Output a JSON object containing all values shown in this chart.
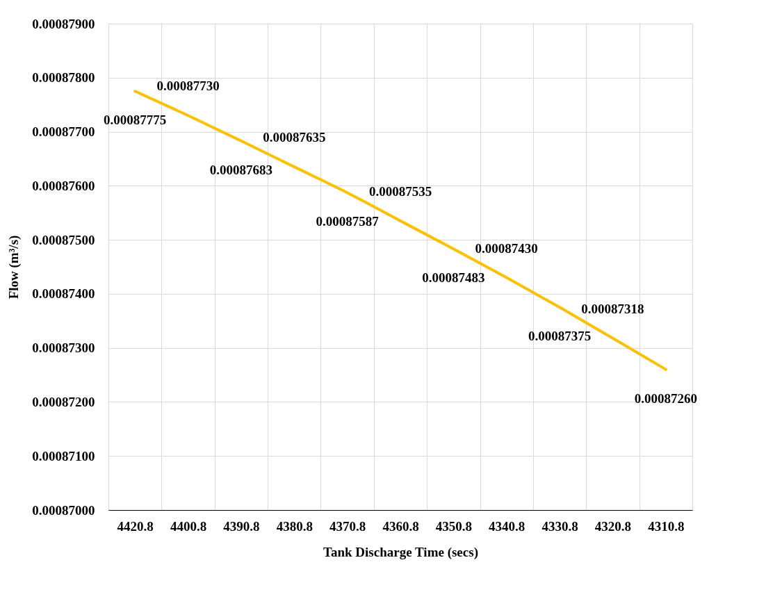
{
  "chart_data": {
    "type": "line",
    "xlabel": "Tank Discharge Time (secs)",
    "ylabel": "Flow (m³/s)",
    "categories": [
      "4420.8",
      "4400.8",
      "4390.8",
      "4380.8",
      "4370.8",
      "4360.8",
      "4350.8",
      "4340.8",
      "4330.8",
      "4320.8",
      "4310.8"
    ],
    "series": [
      {
        "color": "#ffc000",
        "values": [
          0.00087775,
          0.0008773,
          0.00087683,
          0.00087635,
          0.00087587,
          0.00087535,
          0.00087483,
          0.0008743,
          0.00087375,
          0.00087318,
          0.0008726
        ],
        "value_labels": [
          "0.00087775",
          "0.00087730",
          "0.00087683",
          "0.00087635",
          "0.00087587",
          "0.00087535",
          "0.00087483",
          "0.00087430",
          "0.00087375",
          "0.00087318",
          "0.00087260"
        ]
      }
    ],
    "ylim": [
      0.00087,
      0.000879
    ],
    "yticks": [
      {
        "value": 0.00087,
        "label": "0.00087000"
      },
      {
        "value": 0.000871,
        "label": "0.00087100"
      },
      {
        "value": 0.000872,
        "label": "0.00087200"
      },
      {
        "value": 0.000873,
        "label": "0.00087300"
      },
      {
        "value": 0.000874,
        "label": "0.00087400"
      },
      {
        "value": 0.000875,
        "label": "0.00087500"
      },
      {
        "value": 0.000876,
        "label": "0.00087600"
      },
      {
        "value": 0.000877,
        "label": "0.00087700"
      },
      {
        "value": 0.000878,
        "label": "0.00087800"
      },
      {
        "value": 0.000879,
        "label": "0.00087900"
      }
    ],
    "grid": true,
    "marker": "none",
    "line_style": "solid"
  }
}
